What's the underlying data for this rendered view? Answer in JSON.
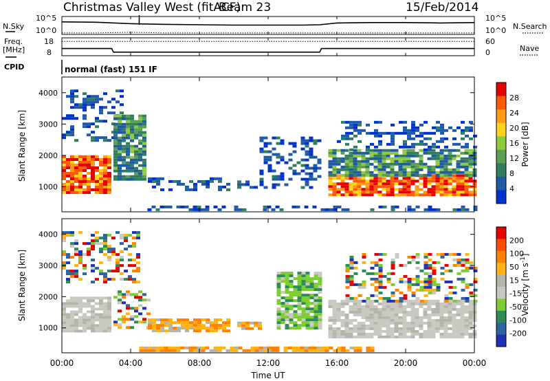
{
  "header": {
    "title": "Christmas Valley West (fitACF)",
    "beam": "Beam 23",
    "date": "15/Feb/2014"
  },
  "colors": {
    "power_scale": [
      "#0033cc",
      "#1e5aa8",
      "#2f7f5f",
      "#5aa050",
      "#8ccc3c",
      "#ffd21e",
      "#ff9a14",
      "#ff5a0a",
      "#e60000"
    ],
    "velocity_scale": [
      "#1e32b4",
      "#2d64a0",
      "#2e8b57",
      "#7ccd32",
      "#c8c8c0",
      "#b4b4aa",
      "#ffb414",
      "#ff8200",
      "#ff4b00",
      "#e60000"
    ]
  },
  "chart_data": [
    {
      "type": "line",
      "panel": "N.Sky / N.Search",
      "left_label": "N.Sky",
      "right_label": "N.Search",
      "left_ticks": [
        "10^5",
        "10^0"
      ],
      "right_ticks": [
        "10^5",
        "10^0"
      ],
      "x": [
        0,
        2,
        4,
        6,
        8,
        10,
        12,
        14,
        15,
        16,
        18,
        20,
        22,
        24
      ],
      "series": [
        {
          "values": [
            3.5,
            3.4,
            3.0,
            2.8,
            2.7,
            2.6,
            2.6,
            2.6,
            2.7,
            3.2,
            3.3,
            3.3,
            3.2,
            3.3
          ]
        },
        {
          "values": [
            0.4,
            0.4,
            0.6,
            0.4,
            0.4,
            0.4,
            0.4,
            0.4,
            0.4,
            0.4,
            0.4,
            0.4,
            0.4,
            0.4
          ]
        }
      ]
    },
    {
      "type": "line",
      "panel": "Freq / Nave",
      "left_label": "Freq.",
      "left_unit": "[MHz]",
      "right_label": "Nave",
      "left_ticks": [
        "18",
        "8"
      ],
      "right_ticks": [
        "60",
        "0"
      ],
      "x": [
        0,
        2.9,
        3.0,
        15.0,
        15.1,
        24
      ],
      "series": [
        {
          "values": [
            12,
            12,
            10,
            10,
            12,
            12
          ]
        },
        {
          "values": [
            8,
            8,
            8,
            8,
            8,
            8
          ]
        }
      ]
    },
    {
      "type": "heatmap",
      "panel": "Power",
      "cpid_label": "CPID",
      "cpid_text": "normal (fast) 151 IF",
      "ylabel": "Slant Range [km]",
      "yticks": [
        "1000",
        "2000",
        "3000",
        "4000"
      ],
      "ylim": [
        200,
        4500
      ],
      "xlim": [
        0,
        24
      ],
      "colorbar_label": "Power [dB]",
      "colorbar_ticks": [
        "4",
        "8",
        "12",
        "16",
        "20",
        "24",
        "28"
      ],
      "regions": [
        {
          "x0": 0.0,
          "x1": 2.8,
          "y0": 850,
          "y1": 2000,
          "level": "high"
        },
        {
          "x0": 0.0,
          "x1": 3.5,
          "y0": 2500,
          "y1": 4100,
          "level": "low"
        },
        {
          "x0": 3.0,
          "x1": 4.9,
          "y0": 1200,
          "y1": 3300,
          "level": "mid"
        },
        {
          "x0": 5.0,
          "x1": 9.8,
          "y0": 900,
          "y1": 1300,
          "level": "low"
        },
        {
          "x0": 10.2,
          "x1": 11.5,
          "y0": 1000,
          "y1": 1200,
          "level": "low"
        },
        {
          "x0": 11.5,
          "x1": 15.0,
          "y0": 1000,
          "y1": 2600,
          "level": "low"
        },
        {
          "x0": 15.5,
          "x1": 24.0,
          "y0": 750,
          "y1": 1400,
          "level": "high"
        },
        {
          "x0": 15.5,
          "x1": 24.0,
          "y0": 1400,
          "y1": 2200,
          "level": "mid"
        },
        {
          "x0": 16.0,
          "x1": 24.0,
          "y0": 2200,
          "y1": 3100,
          "level": "low"
        },
        {
          "x0": 4.5,
          "x1": 24.0,
          "y0": 250,
          "y1": 400,
          "level": "low"
        }
      ]
    },
    {
      "type": "heatmap",
      "panel": "Velocity",
      "ylabel": "Slant Range [km]",
      "yticks": [
        "1000",
        "2000",
        "3000",
        "4000"
      ],
      "ylim": [
        200,
        4500
      ],
      "xlim": [
        0,
        24
      ],
      "xticks": [
        "00:00",
        "04:00",
        "08:00",
        "12:00",
        "16:00",
        "20:00",
        "00:00"
      ],
      "xlabel": "Time UT",
      "colorbar_label": "Velocity [m s",
      "colorbar_unit_sup": "-1",
      "colorbar_unit_close": "]",
      "colorbar_ticks": [
        "200",
        "100",
        "50",
        "15",
        "-15",
        "-50",
        "-100",
        "-200"
      ],
      "regions": [
        {
          "x0": 0.0,
          "x1": 2.8,
          "y0": 900,
          "y1": 2000,
          "level": "gray"
        },
        {
          "x0": 0.0,
          "x1": 4.5,
          "y0": 2500,
          "y1": 4100,
          "level": "mixed"
        },
        {
          "x0": 3.0,
          "x1": 5.0,
          "y0": 1000,
          "y1": 2200,
          "level": "mixed"
        },
        {
          "x0": 5.0,
          "x1": 9.8,
          "y0": 900,
          "y1": 1300,
          "level": "orange"
        },
        {
          "x0": 10.2,
          "x1": 11.5,
          "y0": 1000,
          "y1": 1200,
          "level": "orange"
        },
        {
          "x0": 12.5,
          "x1": 15.0,
          "y0": 1000,
          "y1": 2800,
          "level": "green"
        },
        {
          "x0": 15.5,
          "x1": 24.0,
          "y0": 750,
          "y1": 1900,
          "level": "gray"
        },
        {
          "x0": 16.5,
          "x1": 24.0,
          "y0": 1900,
          "y1": 3400,
          "level": "mixed"
        },
        {
          "x0": 4.5,
          "x1": 18.0,
          "y0": 250,
          "y1": 400,
          "level": "orange"
        }
      ]
    }
  ]
}
